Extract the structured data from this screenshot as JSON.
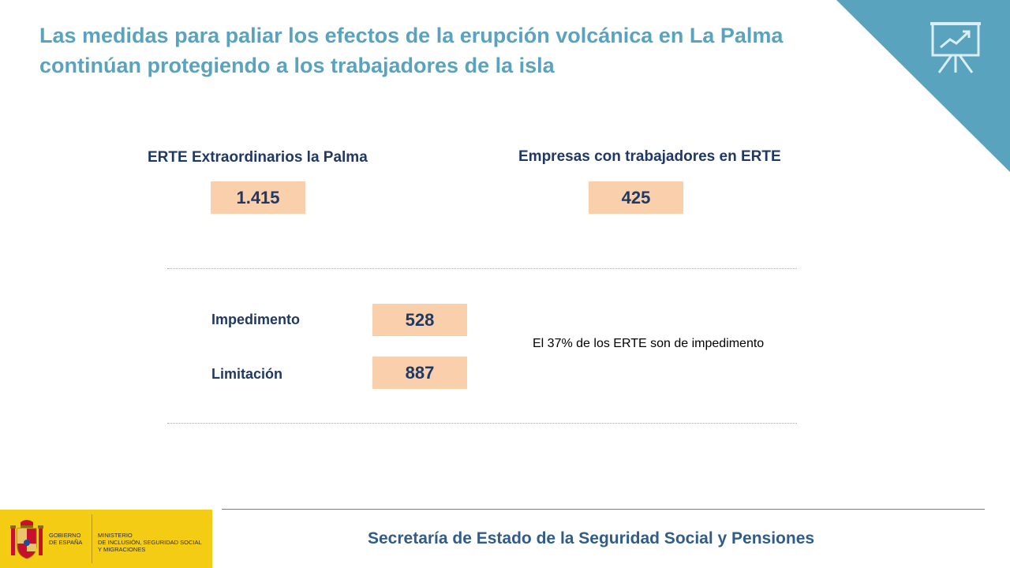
{
  "title": {
    "line1": "Las medidas para paliar los efectos de la erupción volcánica en La Palma",
    "line2": "continúan protegiendo a los trabajadores de la isla"
  },
  "stats": {
    "erte": {
      "label": "ERTE Extraordinarios la Palma",
      "value": "1.415"
    },
    "empresas": {
      "label": "Empresas con trabajadores en ERTE",
      "value": "425"
    }
  },
  "breakdown": {
    "rows": [
      {
        "label": "Impedimento",
        "value": "528"
      },
      {
        "label": "Limitación",
        "value": "887"
      }
    ],
    "note": "El 37% de los ERTE son de impedimento"
  },
  "footer": {
    "text": "Secretaría de Estado de la Seguridad Social y Pensiones",
    "logo_line1": "GOBIERNO",
    "logo_line2": "DE ESPAÑA",
    "ministry_line1": "MINISTERIO",
    "ministry_line2": "DE INCLUSIÓN, SEGURIDAD SOCIAL",
    "ministry_line3": "Y MIGRACIONES"
  },
  "colors": {
    "accent": "#5aa3bf",
    "dark_blue": "#1f3864",
    "value_box": "#f9cfac",
    "logo_yellow": "#f5cc14"
  },
  "icons": [
    "presentation-chart-icon",
    "coat-of-arms-icon"
  ]
}
